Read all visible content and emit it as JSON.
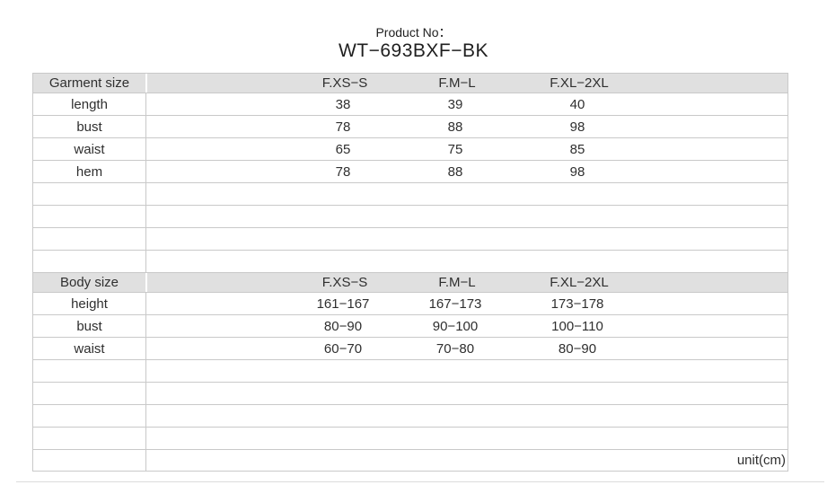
{
  "title": {
    "label": "Product No：",
    "product_no": "WT−693BXF−BK"
  },
  "unit_label": "unit(cm)",
  "garment_table": {
    "header": "Garment size",
    "columns": [
      "F.XS−S",
      "F.M−L",
      "F.XL−2XL"
    ],
    "rows": [
      {
        "label": "length",
        "values": [
          "38",
          "39",
          "40"
        ]
      },
      {
        "label": "bust",
        "values": [
          "78",
          "88",
          "98"
        ]
      },
      {
        "label": "waist",
        "values": [
          "65",
          "75",
          "85"
        ]
      },
      {
        "label": "hem",
        "values": [
          "78",
          "88",
          "98"
        ]
      }
    ],
    "empty_rows": 4
  },
  "body_table": {
    "header": "Body size",
    "columns": [
      "F.XS−S",
      "F.M−L",
      "F.XL−2XL"
    ],
    "rows": [
      {
        "label": "height",
        "values": [
          "161−167",
          "167−173",
          "173−178"
        ]
      },
      {
        "label": "bust",
        "values": [
          "80−90",
          "90−100",
          "100−110"
        ]
      },
      {
        "label": "waist",
        "values": [
          "60−70",
          "70−80",
          "80−90"
        ]
      }
    ],
    "empty_rows": 4
  },
  "colors": {
    "header_background": "#e0e0e0",
    "border": "#c9c9c9",
    "text": "#2f2f2f"
  }
}
